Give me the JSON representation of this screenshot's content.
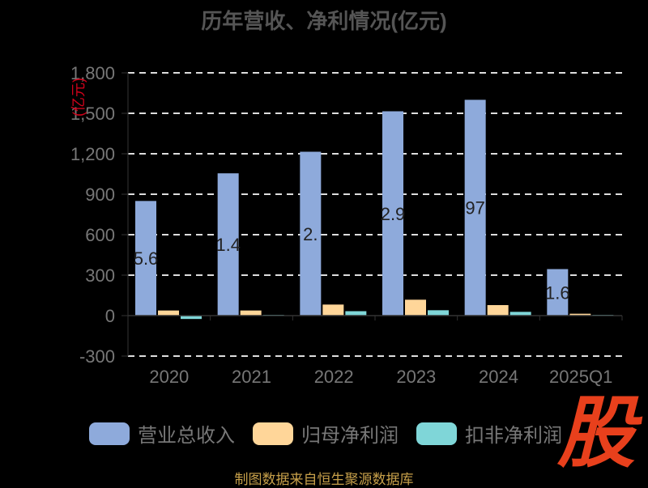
{
  "chart_data": {
    "type": "bar",
    "title": "历年营收、净利情况(亿元)",
    "unit_label": "(亿元)",
    "categories": [
      "2020",
      "2021",
      "2022",
      "2023",
      "2024",
      "2025Q1"
    ],
    "ylim": [
      -300,
      1800
    ],
    "yticks": [
      -300,
      0,
      300,
      600,
      900,
      1200,
      1500,
      1800
    ],
    "ytick_labels": [
      "-300",
      "0",
      "300",
      "600",
      "900",
      "1,200",
      "1,500",
      "1,800"
    ],
    "grid": true,
    "legend_position": "bottom",
    "series": [
      {
        "name": "营业总收入",
        "color": "#8eaadb",
        "values": [
          850,
          1055,
          1215,
          1515,
          1600,
          345
        ],
        "labels": [
          "5.6",
          "1.4",
          "2.",
          "2.9",
          "97",
          "1.6"
        ]
      },
      {
        "name": "归母净利润",
        "color": "#ffd699",
        "values": [
          38,
          38,
          82,
          118,
          78,
          14
        ],
        "labels": [
          "",
          "",
          "",
          "",
          "",
          ""
        ]
      },
      {
        "name": "扣非净利润",
        "color": "#7fd6d8",
        "values": [
          -25,
          6,
          33,
          40,
          28,
          6
        ],
        "labels": [
          "",
          "",
          "",
          "",
          "",
          ""
        ]
      }
    ]
  },
  "brand": {
    "glyph": "股"
  },
  "source_note": "制图数据来自恒生聚源数据库"
}
